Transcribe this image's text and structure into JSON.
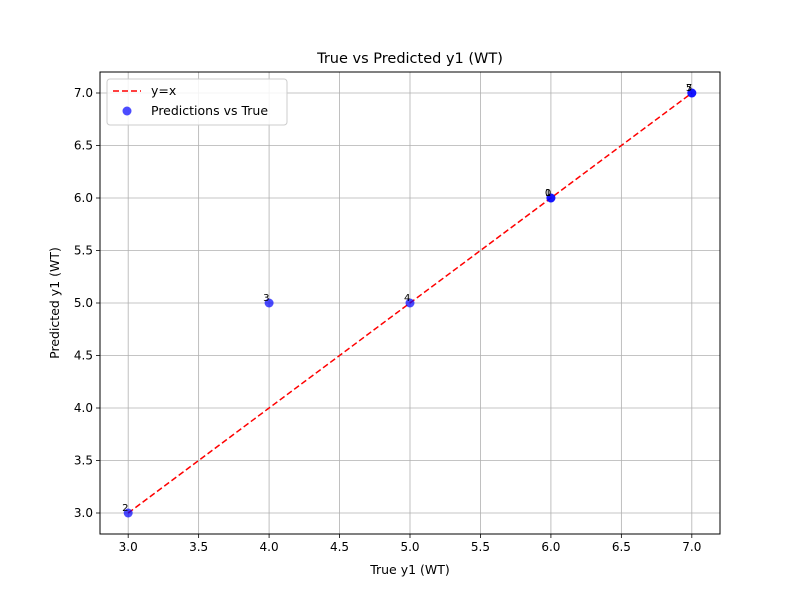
{
  "chart_data": {
    "type": "scatter",
    "title": "True vs Predicted y1 (WT)",
    "xlabel": "True y1 (WT)",
    "ylabel": "Predicted y1 (WT)",
    "xlim": [
      2.8,
      7.2
    ],
    "ylim": [
      2.8,
      7.2
    ],
    "x_ticks": [
      3.0,
      3.5,
      4.0,
      4.5,
      5.0,
      5.5,
      6.0,
      6.5,
      7.0
    ],
    "x_tick_labels": [
      "3.0",
      "3.5",
      "4.0",
      "4.5",
      "5.0",
      "5.5",
      "6.0",
      "6.5",
      "7.0"
    ],
    "y_ticks": [
      3.0,
      3.5,
      4.0,
      4.5,
      5.0,
      5.5,
      6.0,
      6.5,
      7.0
    ],
    "y_tick_labels": [
      "3.0",
      "3.5",
      "4.0",
      "4.5",
      "5.0",
      "5.5",
      "6.0",
      "6.5",
      "7.0"
    ],
    "grid": true,
    "legend": {
      "placement": "top-left",
      "entries": [
        {
          "label": "y=x",
          "kind": "line"
        },
        {
          "label": "Predictions vs True",
          "kind": "marker"
        }
      ]
    },
    "series": [
      {
        "name": "y=x",
        "kind": "line",
        "style": "dashed",
        "color": "#ff0000",
        "x": [
          3.0,
          7.0
        ],
        "y": [
          3.0,
          7.0
        ]
      },
      {
        "name": "Predictions vs True",
        "kind": "scatter",
        "color": "#0000ff",
        "points": [
          {
            "x": 6.0,
            "y": 6.0,
            "label": "0"
          },
          {
            "x": 6.0,
            "y": 6.0,
            "label": "1"
          },
          {
            "x": 3.0,
            "y": 3.0,
            "label": "2"
          },
          {
            "x": 4.0,
            "y": 5.0,
            "label": "3"
          },
          {
            "x": 5.0,
            "y": 5.0,
            "label": "4"
          },
          {
            "x": 7.0,
            "y": 7.0,
            "label": "5"
          },
          {
            "x": 7.0,
            "y": 7.0,
            "label": "7"
          }
        ]
      }
    ]
  }
}
